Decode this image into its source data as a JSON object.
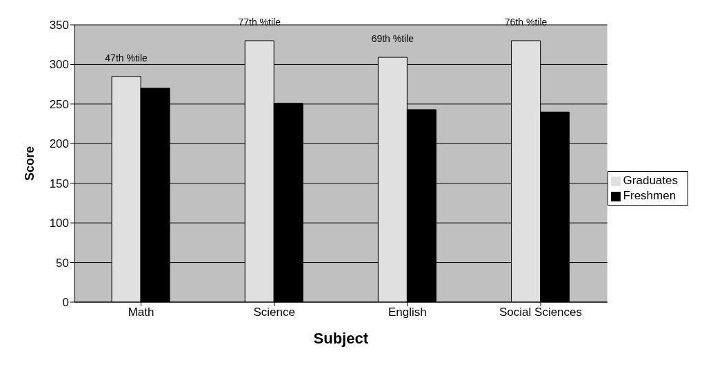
{
  "chart_data": {
    "type": "bar",
    "xlabel": "Subject",
    "ylabel": "Score",
    "categories": [
      "Math",
      "Science",
      "English",
      "Social Sciences"
    ],
    "series": [
      {
        "name": "Graduates",
        "color": "#e0e0e0",
        "values": [
          285,
          330,
          309,
          330
        ]
      },
      {
        "name": "Freshmen",
        "color": "#000000",
        "values": [
          270,
          251,
          243,
          240
        ]
      }
    ],
    "annotations": [
      "47th %tile",
      "77th %tile",
      "69th %tile",
      "76th %tile"
    ],
    "ylim": [
      0,
      350
    ],
    "yticks": [
      0,
      50,
      100,
      150,
      200,
      250,
      300,
      350
    ],
    "grid": "y",
    "legend": "right"
  }
}
